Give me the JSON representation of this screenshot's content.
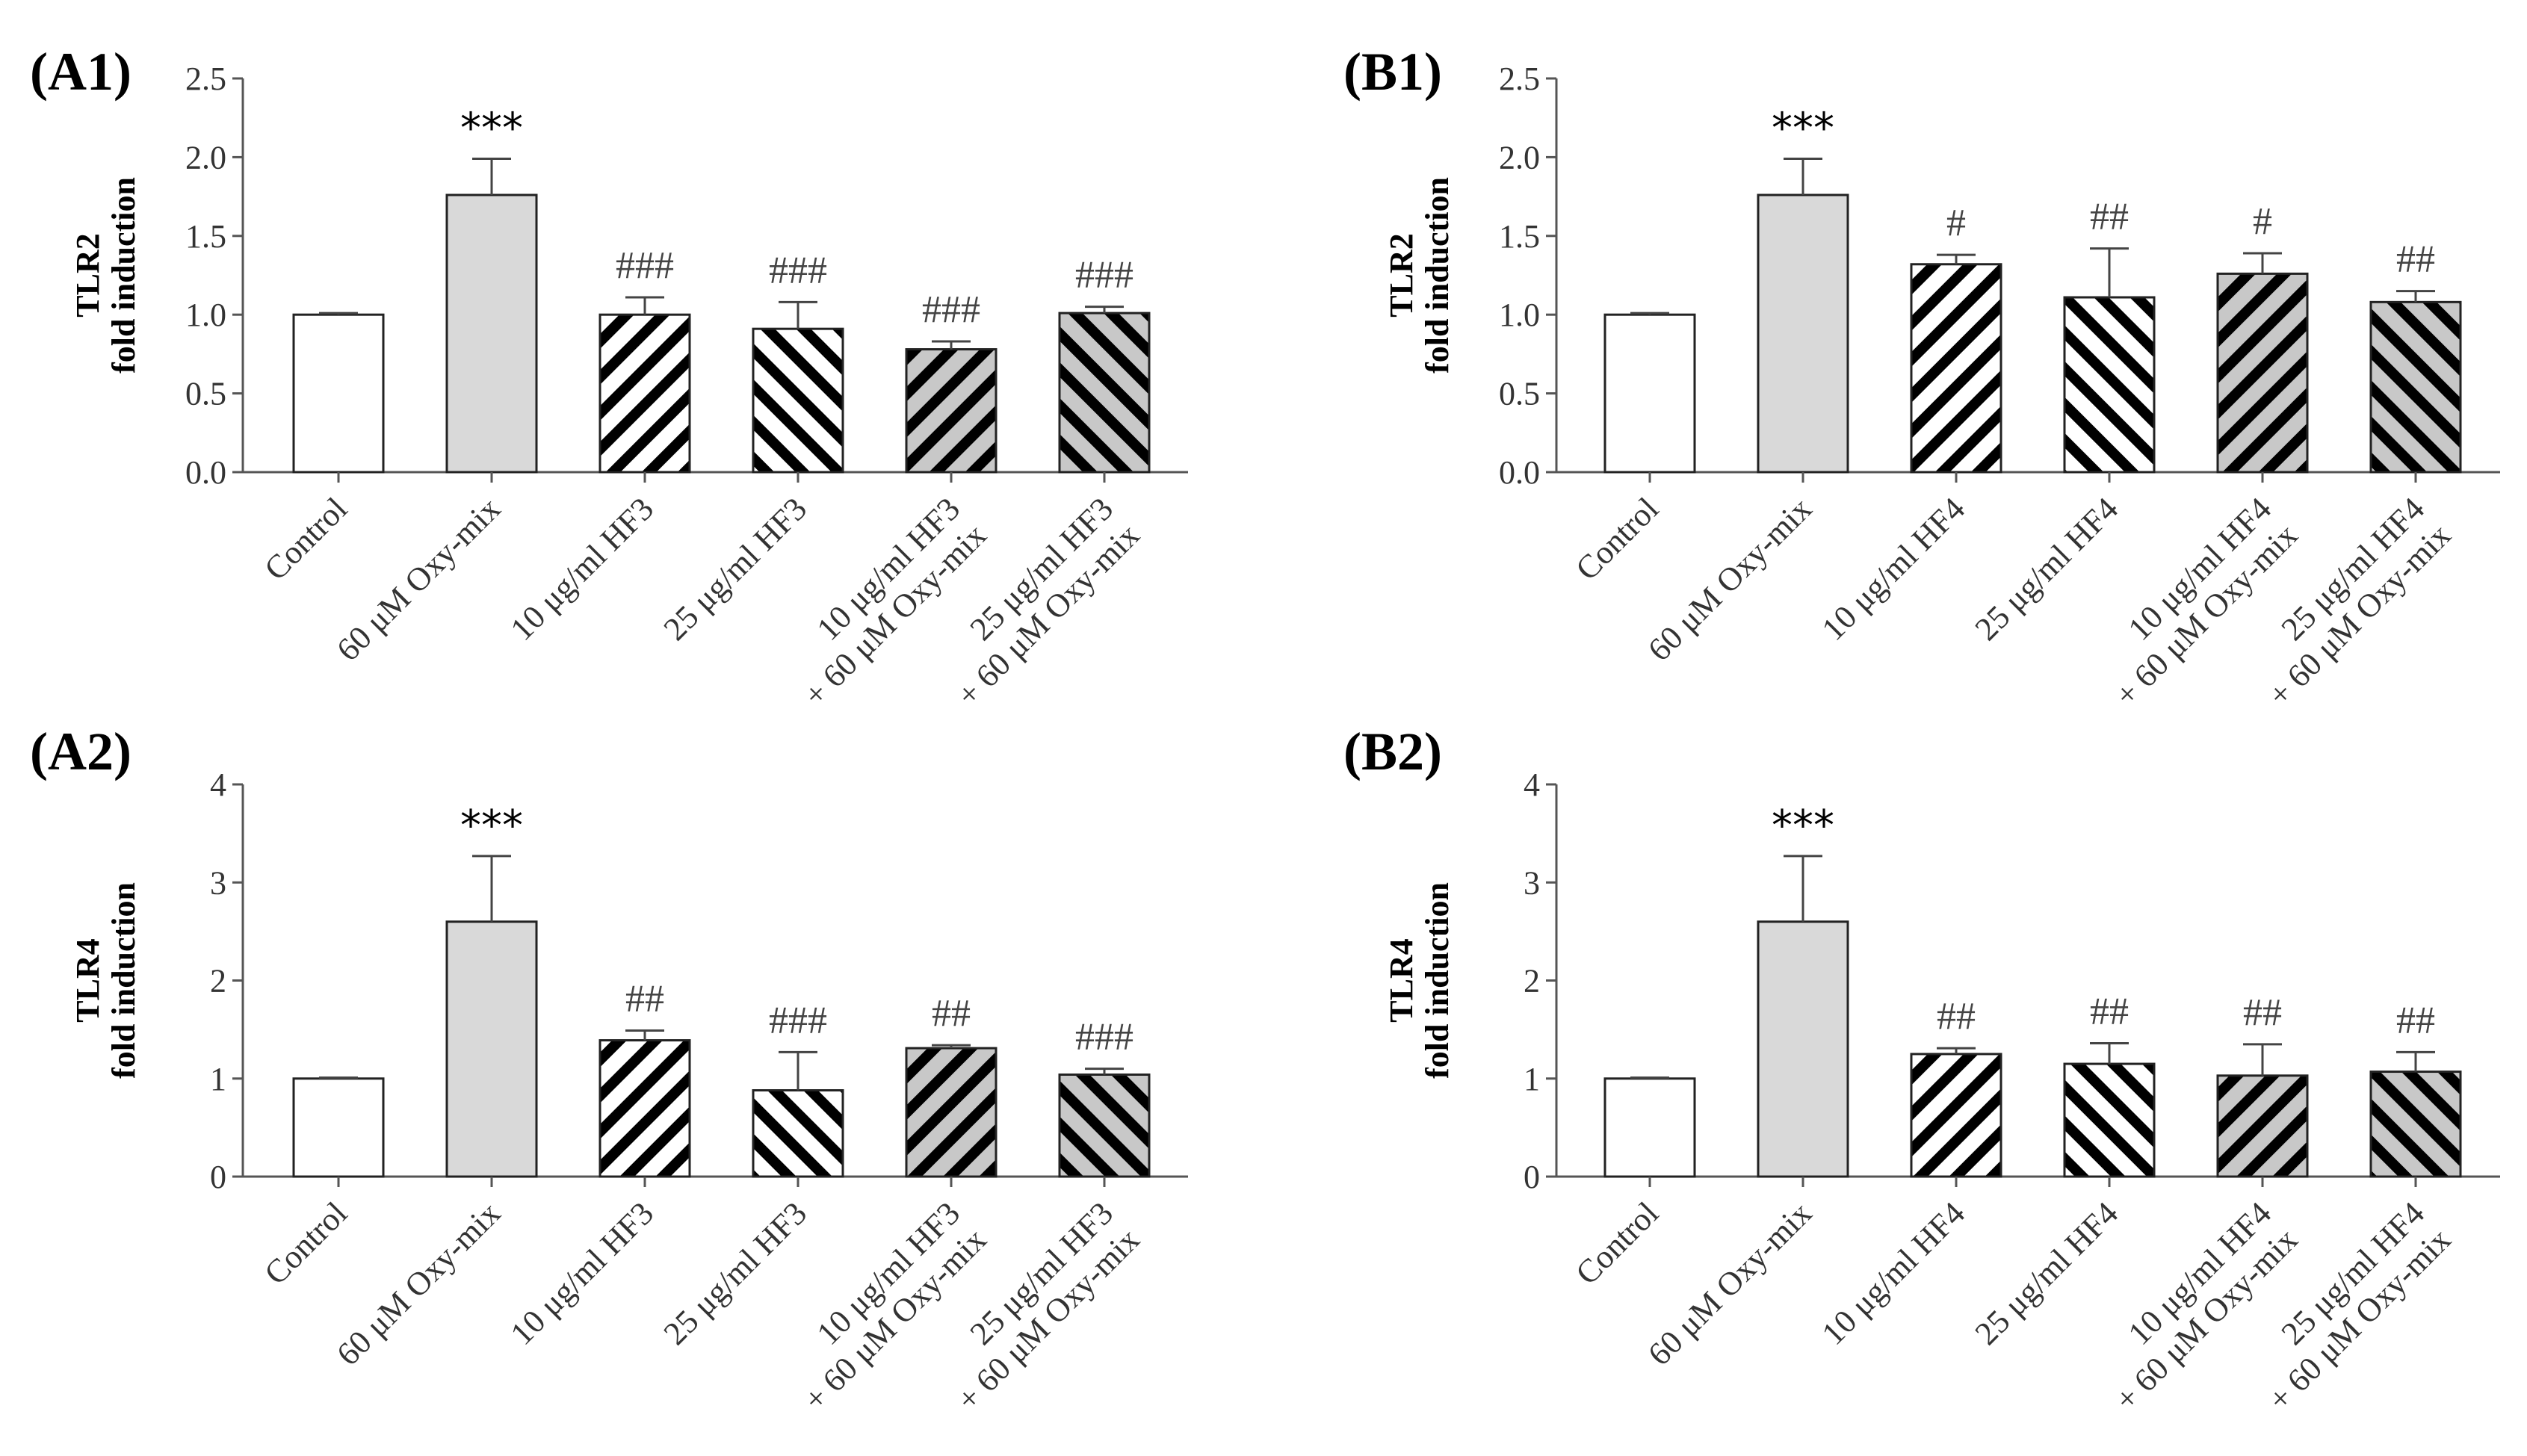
{
  "patterns": {
    "open": {
      "fill": "#ffffff",
      "stripe": null
    },
    "gray": {
      "fill": "#d9d9d9",
      "stripe": null
    },
    "hatch-white-fwd": {
      "fill": "#ffffff",
      "stripe": "#000000",
      "dir": "fwd"
    },
    "hatch-white-back": {
      "fill": "#ffffff",
      "stripe": "#000000",
      "dir": "back"
    },
    "hatch-gray-fwd": {
      "fill": "#c8c8c8",
      "stripe": "#000000",
      "dir": "fwd"
    },
    "hatch-gray-back": {
      "fill": "#c8c8c8",
      "stripe": "#000000",
      "dir": "back"
    }
  },
  "chart_data": [
    {
      "id": "A1",
      "panel_label": "(A1)",
      "type": "bar",
      "ylabel_line1": "TLR2",
      "ylabel_line2": "fold induction",
      "ylim": [
        0,
        2.5
      ],
      "yticks": [
        "0.0",
        "0.5",
        "1.0",
        "1.5",
        "2.0",
        "2.5"
      ],
      "ytick_values": [
        0,
        0.5,
        1.0,
        1.5,
        2.0,
        2.5
      ],
      "categories": [
        {
          "line1": "Control",
          "line2": ""
        },
        {
          "line1": "60 μM Oxy-mix",
          "line2": ""
        },
        {
          "line1": "10 μg/ml HF3",
          "line2": ""
        },
        {
          "line1": "25 μg/ml HF3",
          "line2": ""
        },
        {
          "line1": "10 μg/ml HF3",
          "line2": "+ 60 μM Oxy-mix"
        },
        {
          "line1": "25 μg/ml HF3",
          "line2": "+ 60 μM Oxy-mix"
        }
      ],
      "values": [
        1.0,
        1.76,
        1.0,
        0.91,
        0.78,
        1.01
      ],
      "errors": [
        0.01,
        0.23,
        0.11,
        0.17,
        0.05,
        0.04
      ],
      "annotations": [
        "",
        "***",
        "###",
        "###",
        "###",
        "###"
      ],
      "patterns": [
        "open",
        "gray",
        "hatch-white-fwd",
        "hatch-white-back",
        "hatch-gray-fwd",
        "hatch-gray-back"
      ]
    },
    {
      "id": "B1",
      "panel_label": "(B1)",
      "type": "bar",
      "ylabel_line1": "TLR2",
      "ylabel_line2": "fold induction",
      "ylim": [
        0,
        2.5
      ],
      "yticks": [
        "0.0",
        "0.5",
        "1.0",
        "1.5",
        "2.0",
        "2.5"
      ],
      "ytick_values": [
        0,
        0.5,
        1.0,
        1.5,
        2.0,
        2.5
      ],
      "categories": [
        {
          "line1": "Control",
          "line2": ""
        },
        {
          "line1": "60 μM Oxy-mix",
          "line2": ""
        },
        {
          "line1": "10 μg/ml HF4",
          "line2": ""
        },
        {
          "line1": "25 μg/ml HF4",
          "line2": ""
        },
        {
          "line1": "10 μg/ml HF4",
          "line2": "+ 60 μM Oxy-mix"
        },
        {
          "line1": "25 μg/ml HF4",
          "line2": "+ 60 μM Oxy-mix"
        }
      ],
      "values": [
        1.0,
        1.76,
        1.32,
        1.11,
        1.26,
        1.08
      ],
      "errors": [
        0.01,
        0.23,
        0.06,
        0.31,
        0.13,
        0.07
      ],
      "annotations": [
        "",
        "***",
        "#",
        "##",
        "#",
        "##"
      ],
      "patterns": [
        "open",
        "gray",
        "hatch-white-fwd",
        "hatch-white-back",
        "hatch-gray-fwd",
        "hatch-gray-back"
      ]
    },
    {
      "id": "A2",
      "panel_label": "(A2)",
      "type": "bar",
      "ylabel_line1": "TLR4",
      "ylabel_line2": "fold induction",
      "ylim": [
        0,
        4
      ],
      "yticks": [
        "0",
        "1",
        "2",
        "3",
        "4"
      ],
      "ytick_values": [
        0,
        1,
        2,
        3,
        4
      ],
      "categories": [
        {
          "line1": "Control",
          "line2": ""
        },
        {
          "line1": "60 μM Oxy-mix",
          "line2": ""
        },
        {
          "line1": "10 μg/ml HF3",
          "line2": ""
        },
        {
          "line1": "25 μg/ml HF3",
          "line2": ""
        },
        {
          "line1": "10 μg/ml HF3",
          "line2": "+ 60 μM Oxy-mix"
        },
        {
          "line1": "25 μg/ml HF3",
          "line2": "+ 60 μM Oxy-mix"
        }
      ],
      "values": [
        1.0,
        2.6,
        1.39,
        0.88,
        1.31,
        1.04
      ],
      "errors": [
        0.01,
        0.67,
        0.1,
        0.39,
        0.03,
        0.06
      ],
      "annotations": [
        "",
        "***",
        "##",
        "###",
        "##",
        "###"
      ],
      "patterns": [
        "open",
        "gray",
        "hatch-white-fwd",
        "hatch-white-back",
        "hatch-gray-fwd",
        "hatch-gray-back"
      ]
    },
    {
      "id": "B2",
      "panel_label": "(B2)",
      "type": "bar",
      "ylabel_line1": "TLR4",
      "ylabel_line2": "fold induction",
      "ylim": [
        0,
        4
      ],
      "yticks": [
        "0",
        "1",
        "2",
        "3",
        "4"
      ],
      "ytick_values": [
        0,
        1,
        2,
        3,
        4
      ],
      "categories": [
        {
          "line1": "Control",
          "line2": ""
        },
        {
          "line1": "60 μM Oxy-mix",
          "line2": ""
        },
        {
          "line1": "10 μg/ml HF4",
          "line2": ""
        },
        {
          "line1": "25 μg/ml HF4",
          "line2": ""
        },
        {
          "line1": "10 μg/ml HF4",
          "line2": "+ 60 μM Oxy-mix"
        },
        {
          "line1": "25 μg/ml HF4",
          "line2": "+ 60 μM Oxy-mix"
        }
      ],
      "values": [
        1.0,
        2.6,
        1.25,
        1.15,
        1.03,
        1.07
      ],
      "errors": [
        0.01,
        0.67,
        0.06,
        0.21,
        0.32,
        0.2
      ],
      "annotations": [
        "",
        "***",
        "##",
        "##",
        "##",
        "##"
      ],
      "patterns": [
        "open",
        "gray",
        "hatch-white-fwd",
        "hatch-white-back",
        "hatch-gray-fwd",
        "hatch-gray-back"
      ]
    }
  ]
}
